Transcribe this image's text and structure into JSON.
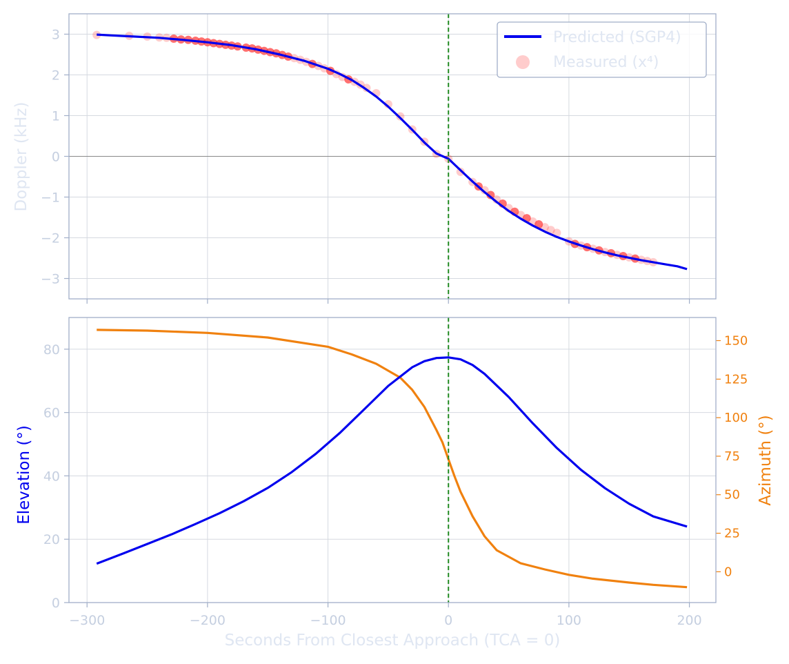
{
  "chart_data": [
    {
      "type": "line",
      "ylabel": "Doppler (kHz)",
      "xlim": [
        -315,
        222
      ],
      "ylim": [
        -3.5,
        3.5
      ],
      "xticks": [
        -300,
        -200,
        -100,
        0,
        100,
        200
      ],
      "yticks": [
        3,
        2,
        1,
        0,
        -1,
        -2,
        -3
      ],
      "grid": true,
      "legend_position": "top-right",
      "vline_x": 0,
      "zero_line_y": 0,
      "colors": {
        "predicted": "#0000ee",
        "measured": "#ff3333",
        "vline": "#228b22",
        "axis_text": "#c5cfe0"
      },
      "series": [
        {
          "name": "Predicted (SGP4)",
          "kind": "line",
          "x": [
            -292,
            -280,
            -260,
            -240,
            -220,
            -200,
            -180,
            -160,
            -140,
            -120,
            -100,
            -90,
            -80,
            -70,
            -60,
            -50,
            -40,
            -30,
            -20,
            -10,
            0,
            10,
            20,
            30,
            40,
            50,
            60,
            70,
            80,
            90,
            100,
            110,
            120,
            130,
            140,
            150,
            160,
            170,
            180,
            190,
            198
          ],
          "values": [
            2.99,
            2.97,
            2.94,
            2.91,
            2.86,
            2.8,
            2.73,
            2.63,
            2.5,
            2.35,
            2.15,
            2.02,
            1.87,
            1.68,
            1.47,
            1.22,
            0.94,
            0.65,
            0.34,
            0.07,
            -0.06,
            -0.34,
            -0.62,
            -0.88,
            -1.12,
            -1.34,
            -1.53,
            -1.7,
            -1.85,
            -1.98,
            -2.09,
            -2.19,
            -2.28,
            -2.36,
            -2.43,
            -2.49,
            -2.55,
            -2.6,
            -2.65,
            -2.7,
            -2.77
          ]
        },
        {
          "name": "Measured (x⁴)",
          "kind": "scatter",
          "x": [
            -292,
            -265,
            -250,
            -240,
            -234,
            -228,
            -222,
            -216,
            -210,
            -205,
            -200,
            -195,
            -190,
            -185,
            -180,
            -175,
            -168,
            -163,
            -158,
            -153,
            -148,
            -143,
            -138,
            -133,
            -128,
            -123,
            -118,
            -113,
            -108,
            -103,
            -98,
            -93,
            -88,
            -83,
            -78,
            -73,
            -68,
            -60,
            -50,
            -40,
            -30,
            -20,
            -10,
            0,
            10,
            20,
            25,
            30,
            35,
            40,
            45,
            50,
            55,
            60,
            65,
            70,
            75,
            80,
            85,
            90,
            100,
            105,
            110,
            115,
            120,
            125,
            130,
            135,
            140,
            145,
            150,
            155,
            160,
            165,
            170
          ],
          "values": [
            2.98,
            2.96,
            2.94,
            2.92,
            2.91,
            2.89,
            2.87,
            2.86,
            2.84,
            2.82,
            2.8,
            2.78,
            2.76,
            2.74,
            2.72,
            2.7,
            2.67,
            2.65,
            2.62,
            2.59,
            2.56,
            2.53,
            2.49,
            2.45,
            2.41,
            2.37,
            2.32,
            2.27,
            2.22,
            2.16,
            2.1,
            2.02,
            1.95,
            1.89,
            1.83,
            1.76,
            1.68,
            1.55,
            1.28,
            0.98,
            0.66,
            0.36,
            0.06,
            -0.06,
            -0.38,
            -0.63,
            -0.74,
            -0.83,
            -0.95,
            -1.06,
            -1.16,
            -1.27,
            -1.36,
            -1.44,
            -1.52,
            -1.6,
            -1.67,
            -1.74,
            -1.81,
            -1.88,
            -2.09,
            -2.15,
            -2.19,
            -2.23,
            -2.27,
            -2.31,
            -2.35,
            -2.38,
            -2.42,
            -2.45,
            -2.48,
            -2.51,
            -2.54,
            -2.57,
            -2.6
          ]
        }
      ]
    },
    {
      "type": "line",
      "xlabel": "Seconds From Closest Approach (TCA = 0)",
      "ylabel": "Elevation (°)",
      "ylabel_right": "Azimuth (°)",
      "xlim": [
        -315,
        222
      ],
      "ylim": [
        0,
        90
      ],
      "ylim_right": [
        -20,
        165
      ],
      "xticks": [
        -300,
        -200,
        -100,
        0,
        100,
        200
      ],
      "yticks": [
        0,
        20,
        40,
        60,
        80
      ],
      "yticks_right": [
        0,
        25,
        50,
        75,
        100,
        125,
        150
      ],
      "grid": true,
      "vline_x": 0,
      "colors": {
        "elevation": "#0000ee",
        "azimuth": "#f0810f",
        "vline": "#228b22",
        "axis_text": "#c5cfe0"
      },
      "series": [
        {
          "name": "Elevation",
          "axis": "left",
          "x": [
            -292,
            -270,
            -250,
            -230,
            -210,
            -190,
            -170,
            -150,
            -130,
            -110,
            -90,
            -70,
            -50,
            -30,
            -20,
            -10,
            0,
            10,
            20,
            30,
            50,
            70,
            90,
            110,
            130,
            150,
            170,
            198
          ],
          "values": [
            12.3,
            15.5,
            18.5,
            21.5,
            24.8,
            28.2,
            32.0,
            36.2,
            41.2,
            47.0,
            53.6,
            61.0,
            68.4,
            74.3,
            76.2,
            77.2,
            77.4,
            76.8,
            75.0,
            72.2,
            64.9,
            56.6,
            48.8,
            41.9,
            36.1,
            31.2,
            27.2,
            24.0
          ]
        },
        {
          "name": "Azimuth",
          "axis": "right",
          "x": [
            -292,
            -250,
            -200,
            -150,
            -100,
            -80,
            -60,
            -40,
            -30,
            -20,
            -10,
            -5,
            0,
            5,
            10,
            20,
            30,
            40,
            60,
            80,
            100,
            120,
            150,
            170,
            198
          ],
          "values": [
            157,
            156.5,
            155,
            152,
            146,
            141,
            135,
            126,
            118,
            107,
            92,
            84,
            73,
            62,
            52,
            36,
            23,
            14,
            5.5,
            1.5,
            -2,
            -4.5,
            -7,
            -8.5,
            -10
          ]
        }
      ]
    }
  ]
}
